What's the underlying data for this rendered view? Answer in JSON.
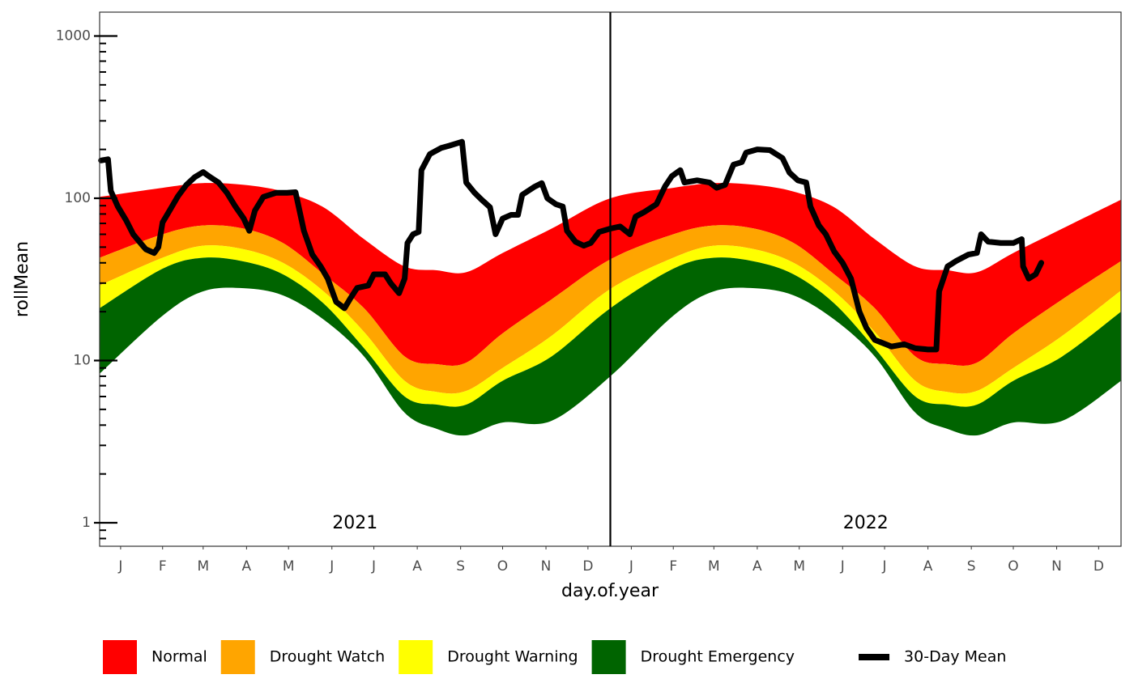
{
  "chart_data": {
    "type": "ribbon",
    "xlabel": "day.of.year",
    "ylabel": "rollMean",
    "facets": [
      "2021",
      "2022"
    ],
    "legend": "bottom",
    "log_y": true,
    "xlim": [
      0,
      730
    ],
    "ylim": [
      0.717,
      1403
    ],
    "xticks": [
      {
        "value": 15,
        "label": "J"
      },
      {
        "value": 45,
        "label": "F"
      },
      {
        "value": 74,
        "label": "M"
      },
      {
        "value": 105,
        "label": "A"
      },
      {
        "value": 135,
        "label": "M"
      },
      {
        "value": 166,
        "label": "J"
      },
      {
        "value": 196,
        "label": "J"
      },
      {
        "value": 227,
        "label": "A"
      },
      {
        "value": 258,
        "label": "S"
      },
      {
        "value": 288,
        "label": "O"
      },
      {
        "value": 319,
        "label": "N"
      },
      {
        "value": 349,
        "label": "D"
      },
      {
        "value": 380,
        "label": "J"
      },
      {
        "value": 410,
        "label": "F"
      },
      {
        "value": 439,
        "label": "M"
      },
      {
        "value": 470,
        "label": "A"
      },
      {
        "value": 500,
        "label": "M"
      },
      {
        "value": 531,
        "label": "J"
      },
      {
        "value": 561,
        "label": "J"
      },
      {
        "value": 592,
        "label": "A"
      },
      {
        "value": 623,
        "label": "S"
      },
      {
        "value": 653,
        "label": "O"
      },
      {
        "value": 684,
        "label": "N"
      },
      {
        "value": 714,
        "label": "D"
      }
    ],
    "yticks": [
      1,
      10,
      100,
      1000
    ],
    "yminorticks": [
      0.8,
      0.9,
      2,
      3,
      4,
      5,
      6,
      7,
      8,
      9,
      20,
      30,
      40,
      50,
      60,
      70,
      80,
      90,
      200,
      300,
      400,
      500,
      600,
      700,
      800,
      900
    ],
    "bands": {
      "x": [
        0,
        45,
        74,
        103,
        131,
        160,
        189,
        218,
        241,
        262,
        288,
        323,
        365,
        410,
        439,
        468,
        496,
        525,
        554,
        583,
        606,
        627,
        653,
        688,
        730
      ],
      "series": [
        {
          "name": "Normal",
          "color": "#ff0000",
          "upper": [
            102,
            116,
            124,
            121,
            110,
            88,
            56,
            38,
            36,
            35,
            46,
            65,
            100,
            116,
            124,
            121,
            110,
            88,
            56,
            38,
            36,
            35,
            46,
            65,
            98
          ],
          "lower": [
            43,
            60,
            68,
            65,
            53,
            34,
            21,
            10.6,
            9.5,
            9.7,
            14.7,
            23.8,
            42,
            60,
            68,
            65,
            53,
            34,
            21,
            10.6,
            9.5,
            9.7,
            14.7,
            23.8,
            41
          ]
        },
        {
          "name": "Drought Watch",
          "color": "#ffa500",
          "upper": [
            43,
            60,
            68,
            65,
            53,
            34,
            21,
            10.6,
            9.5,
            9.7,
            14.7,
            23.8,
            42,
            60,
            68,
            65,
            53,
            34,
            21,
            10.6,
            9.5,
            9.7,
            14.7,
            23.8,
            41
          ],
          "lower": [
            29,
            43,
            51,
            48.5,
            40,
            26.7,
            15,
            7.5,
            6.4,
            6.5,
            9.0,
            14.2,
            27.6,
            43,
            51,
            48.5,
            40,
            26.7,
            15,
            7.5,
            6.4,
            6.5,
            9.0,
            14.2,
            27
          ]
        },
        {
          "name": "Drought Warning",
          "color": "#ffff00",
          "upper": [
            29,
            43,
            51,
            48.5,
            40,
            26.7,
            15,
            7.5,
            6.4,
            6.5,
            9.0,
            14.2,
            27.6,
            43,
            51,
            48.5,
            40,
            26.7,
            15,
            7.5,
            6.4,
            6.5,
            9.0,
            14.2,
            27
          ],
          "lower": [
            21,
            36.8,
            43,
            40.8,
            34,
            22.5,
            11.9,
            6.0,
            5.35,
            5.35,
            7.5,
            10.6,
            21,
            36.8,
            43,
            40.8,
            34,
            22.5,
            11.9,
            6.0,
            5.35,
            5.35,
            7.5,
            10.6,
            20
          ]
        },
        {
          "name": "Drought Emergency",
          "color": "#006400",
          "upper": [
            21,
            36.8,
            43,
            40.8,
            34,
            22.5,
            11.9,
            6.0,
            5.35,
            5.35,
            7.5,
            10.6,
            21,
            36.8,
            43,
            40.8,
            34,
            22.5,
            11.9,
            6.0,
            5.35,
            5.35,
            7.5,
            10.6,
            20
          ],
          "lower": [
            8.3,
            18.9,
            26.7,
            27.9,
            25.2,
            17.9,
            10.6,
            4.77,
            3.79,
            3.46,
            4.15,
            4.25,
            8.0,
            18.9,
            26.7,
            27.9,
            25.2,
            17.9,
            10.6,
            4.77,
            3.79,
            3.46,
            4.15,
            4.25,
            7.5
          ]
        }
      ]
    },
    "series": [
      {
        "name": "30-Day Mean",
        "color": "#000000",
        "x": [
          1,
          6,
          8,
          13,
          19,
          24,
          30,
          33,
          39,
          42,
          45,
          50,
          56,
          62,
          68,
          74,
          79,
          85,
          91,
          97,
          103,
          107,
          111,
          117,
          126,
          134,
          140,
          146,
          152,
          158,
          163,
          169,
          175,
          179,
          184,
          192,
          196,
          204,
          208,
          214,
          218,
          220,
          224,
          228,
          230,
          236,
          244,
          250,
          259,
          262,
          268,
          273,
          279,
          283,
          288,
          294,
          299,
          302,
          311,
          316,
          320,
          326,
          331,
          334,
          340,
          346,
          351,
          357,
          365,
          372,
          379,
          383,
          389,
          398,
          404,
          409,
          415,
          418,
          427,
          436,
          441,
          447,
          453,
          459,
          462,
          470,
          479,
          488,
          493,
          499,
          505,
          508,
          514,
          519,
          525,
          531,
          537,
          543,
          548,
          554,
          566,
          575,
          583,
          592,
          598,
          600,
          606,
          612,
          621,
          627,
          630,
          635,
          644,
          653,
          659,
          660,
          664,
          669,
          673
        ],
        "values": [
          171,
          174,
          111,
          89,
          73,
          60,
          52,
          48.5,
          46,
          50,
          71,
          84,
          103,
          121,
          135,
          145,
          135,
          125,
          108,
          89,
          75,
          63,
          84,
          102,
          108,
          108,
          109,
          63,
          45,
          38,
          32,
          23,
          21,
          24,
          28,
          29,
          34,
          34,
          30,
          26,
          32,
          53,
          60,
          62,
          149,
          187,
          204,
          211,
          223,
          125,
          108,
          98,
          88,
          60,
          75,
          79,
          79,
          105,
          118,
          124,
          100,
          92,
          89,
          63,
          54,
          51,
          53,
          62,
          65,
          67,
          60,
          77,
          82,
          92,
          118,
          137,
          149,
          125,
          129,
          125,
          116,
          121,
          161,
          167,
          191,
          200,
          198,
          177,
          144,
          129,
          125,
          89,
          68,
          60,
          47,
          40,
          32,
          20,
          15.9,
          13.4,
          12.2,
          12.6,
          11.9,
          11.7,
          11.7,
          26.7,
          38,
          41,
          45,
          46,
          60,
          54,
          53,
          53,
          56,
          38,
          32,
          34,
          40
        ]
      }
    ]
  }
}
